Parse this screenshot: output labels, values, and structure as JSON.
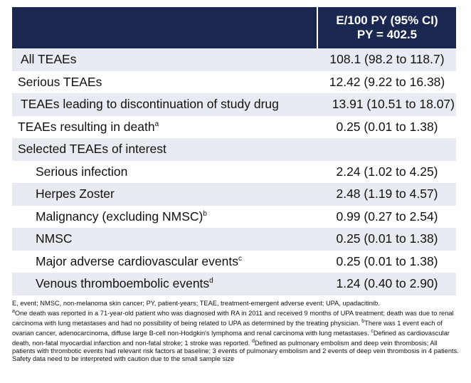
{
  "table": {
    "header": {
      "line1": "E/100 PY (95% CI)",
      "line2": "PY = 402.5"
    },
    "rows": [
      {
        "label": "All TEAEs",
        "sup": "",
        "value": "108.1 (98.2 to 118.7)"
      },
      {
        "label": "Serious TEAEs",
        "sup": "",
        "value": "12.42 (9.22 to 16.38)"
      },
      {
        "label": "TEAEs leading to discontinuation of study drug",
        "sup": "",
        "value": "13.91 (10.51 to 18.07)"
      },
      {
        "label": "TEAEs resulting in death",
        "sup": "a",
        "value": "0.25 (0.01 to 1.38)"
      },
      {
        "label": "Selected TEAEs of interest",
        "sup": "",
        "value": ""
      },
      {
        "label": "Serious infection",
        "sup": "",
        "value": "2.24 (1.02 to 4.25)"
      },
      {
        "label": "Herpes Zoster",
        "sup": "",
        "value": "2.48 (1.19 to 4.57)"
      },
      {
        "label": "Malignancy (excluding NMSC)",
        "sup": "b",
        "value": "0.99 (0.27 to 2.54)"
      },
      {
        "label": "NMSC",
        "sup": "",
        "value": "0.25 (0.01 to 1.38)"
      },
      {
        "label": "Major adverse cardiovascular events",
        "sup": "c",
        "value": "0.25 (0.01 to 1.38)"
      },
      {
        "label": "Venous thromboembolic events",
        "sup": "d",
        "value": "1.24 (0.40 to 2.90)"
      }
    ]
  },
  "footnote": {
    "abbrev": "E, event; NMSC, non-melanoma skin cancer; PY, patient-years; TEAE, treatment-emergent adverse event; UPA, upadacitinib.",
    "sup_a": "a",
    "note_a": "One death was reported in a 71-year-old patient who was diagnosed with RA in 2011 and received 9 months of UPA treatment; death was due  to renal carcinoma with lung metastases and had no possibility of being related to UPA as determined by the treating physician. ",
    "sup_b": "b",
    "note_b": "There was 1 event each of ovarian cancer, adenocarcinoma, diffuse large B-cell non-Hodgkin's lymphoma and renal carcinoma with lung metastases. ",
    "sup_c": "c",
    "note_c": "Defined as cardiovascular death, non-fatal myocardial infarction and non-fatal stroke; 1 stroke was reported. ",
    "sup_d": "d",
    "note_d": "Defined as pulmonary embolism and deep vein thrombosis; All patients with thrombotic events had relevant risk factors at baseline; 3 events of pulmonary embolism and 2 events of deep vein thrombosis in 4 patients. Safety data need to be interpreted with caution due to the small sample size"
  },
  "colors": {
    "header_bg": "#1a2750",
    "row_shade": "#e8ebf2"
  }
}
